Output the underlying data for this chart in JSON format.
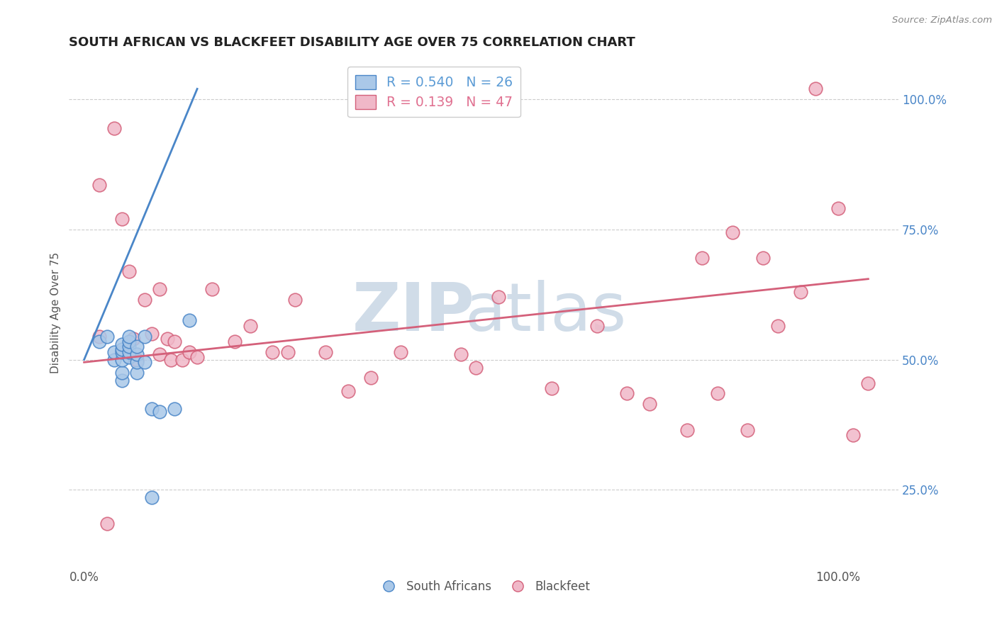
{
  "title": "SOUTH AFRICAN VS BLACKFEET DISABILITY AGE OVER 75 CORRELATION CHART",
  "source": "Source: ZipAtlas.com",
  "ylabel": "Disability Age Over 75",
  "legend_entries": [
    {
      "label": "R = 0.540   N = 26",
      "color": "#5b9bd5"
    },
    {
      "label": "R = 0.139   N = 47",
      "color": "#e07090"
    }
  ],
  "south_african_x": [
    0.02,
    0.03,
    0.04,
    0.04,
    0.05,
    0.05,
    0.05,
    0.05,
    0.05,
    0.05,
    0.06,
    0.06,
    0.06,
    0.06,
    0.06,
    0.07,
    0.07,
    0.07,
    0.07,
    0.08,
    0.08,
    0.09,
    0.09,
    0.1,
    0.12,
    0.14
  ],
  "south_african_y": [
    0.535,
    0.545,
    0.5,
    0.515,
    0.46,
    0.475,
    0.5,
    0.515,
    0.52,
    0.53,
    0.505,
    0.515,
    0.525,
    0.535,
    0.545,
    0.475,
    0.495,
    0.51,
    0.525,
    0.495,
    0.545,
    0.235,
    0.405,
    0.4,
    0.405,
    0.575
  ],
  "blackfeet_x": [
    0.02,
    0.02,
    0.03,
    0.04,
    0.05,
    0.06,
    0.065,
    0.07,
    0.08,
    0.09,
    0.1,
    0.1,
    0.11,
    0.115,
    0.12,
    0.13,
    0.14,
    0.15,
    0.17,
    0.2,
    0.22,
    0.25,
    0.27,
    0.28,
    0.32,
    0.35,
    0.38,
    0.42,
    0.5,
    0.52,
    0.55,
    0.62,
    0.68,
    0.72,
    0.75,
    0.8,
    0.82,
    0.84,
    0.86,
    0.88,
    0.9,
    0.92,
    0.95,
    0.97,
    1.0,
    1.02,
    1.04
  ],
  "blackfeet_y": [
    0.545,
    0.835,
    0.185,
    0.945,
    0.77,
    0.67,
    0.54,
    0.5,
    0.615,
    0.55,
    0.635,
    0.51,
    0.54,
    0.5,
    0.535,
    0.5,
    0.515,
    0.505,
    0.635,
    0.535,
    0.565,
    0.515,
    0.515,
    0.615,
    0.515,
    0.44,
    0.465,
    0.515,
    0.51,
    0.485,
    0.62,
    0.445,
    0.565,
    0.435,
    0.415,
    0.365,
    0.695,
    0.435,
    0.745,
    0.365,
    0.695,
    0.565,
    0.63,
    1.02,
    0.79,
    0.355,
    0.455
  ],
  "blue_line_x": [
    0.0,
    0.15
  ],
  "blue_line_y": [
    0.5,
    1.02
  ],
  "pink_line_x": [
    0.0,
    1.04
  ],
  "pink_line_y": [
    0.495,
    0.655
  ],
  "blue_color": "#4a86c8",
  "pink_color": "#d4607a",
  "scatter_blue": "#aac8e8",
  "scatter_pink": "#f0b8c8",
  "bg_color": "#ffffff",
  "watermark_color": "#d0dce8",
  "xlim": [
    -0.02,
    1.08
  ],
  "ylim": [
    0.1,
    1.08
  ],
  "yticks": [
    0.25,
    0.5,
    0.75,
    1.0
  ],
  "ytick_labels": [
    "25.0%",
    "50.0%",
    "75.0%",
    "100.0%"
  ],
  "xticks": [
    0.0,
    0.25,
    0.5,
    0.75,
    1.0
  ],
  "xtick_labels": [
    "0.0%",
    "",
    "",
    "",
    "100.0%"
  ]
}
